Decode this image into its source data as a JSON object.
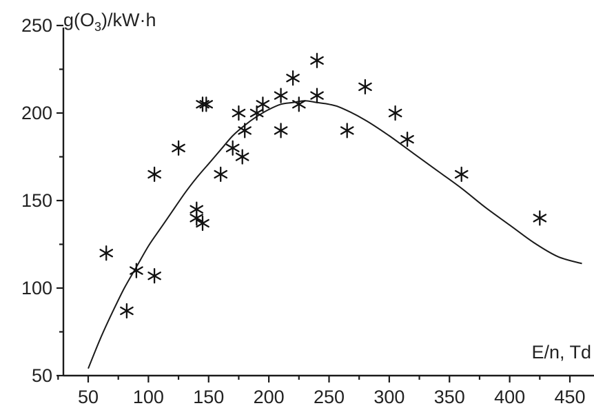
{
  "chart_data": {
    "type": "scatter",
    "xlabel": "E/n, Td",
    "ylabel_prefix": "g(O",
    "ylabel_sub": "3",
    "ylabel_suffix": ")/kW·h",
    "xlim": [
      30,
      475
    ],
    "ylim": [
      50,
      250
    ],
    "x_ticks": [
      50,
      100,
      150,
      200,
      250,
      300,
      350,
      400,
      450
    ],
    "y_ticks": [
      50,
      100,
      150,
      200,
      250
    ],
    "grid": false,
    "marker": "asterisk",
    "series": [
      {
        "points": [
          [
            65,
            120
          ],
          [
            82,
            87
          ],
          [
            90,
            110
          ],
          [
            105,
            107
          ],
          [
            105,
            165
          ],
          [
            125,
            180
          ],
          [
            140,
            145
          ],
          [
            140,
            140
          ],
          [
            145,
            137
          ],
          [
            145,
            205
          ],
          [
            148,
            205
          ],
          [
            160,
            165
          ],
          [
            170,
            180
          ],
          [
            175,
            200
          ],
          [
            178,
            175
          ],
          [
            180,
            190
          ],
          [
            190,
            200
          ],
          [
            195,
            205
          ],
          [
            210,
            210
          ],
          [
            210,
            190
          ],
          [
            220,
            220
          ],
          [
            225,
            205
          ],
          [
            240,
            230
          ],
          [
            240,
            210
          ],
          [
            265,
            190
          ],
          [
            280,
            215
          ],
          [
            305,
            200
          ],
          [
            315,
            185
          ],
          [
            360,
            165
          ],
          [
            425,
            140
          ]
        ]
      }
    ],
    "fit_curve": {
      "x": [
        50,
        60,
        70,
        80,
        90,
        100,
        110,
        120,
        130,
        140,
        150,
        160,
        170,
        180,
        190,
        200,
        210,
        220,
        230,
        240,
        250,
        260,
        280,
        300,
        320,
        340,
        360,
        380,
        400,
        420,
        440,
        460
      ],
      "y": [
        54,
        71,
        86,
        100,
        112,
        124,
        134,
        144,
        154,
        163,
        171,
        179,
        187,
        193,
        198,
        202,
        205,
        206,
        207,
        206,
        205,
        203,
        196,
        187,
        177,
        167,
        157,
        146,
        136,
        126,
        118,
        114
      ]
    }
  }
}
